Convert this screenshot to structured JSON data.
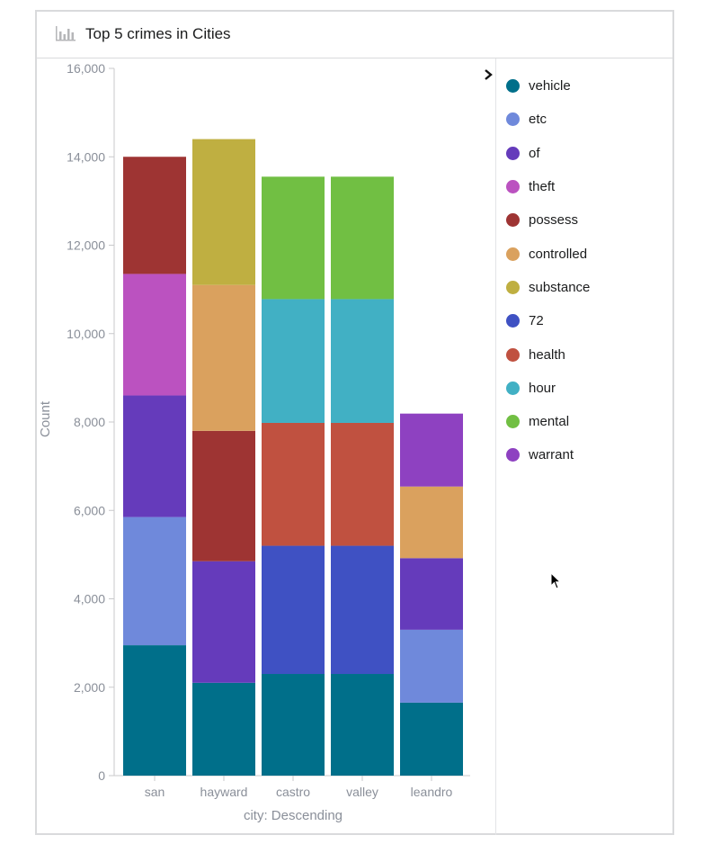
{
  "panel": {
    "title": "Top 5 crimes in Cities",
    "icon": "bar-chart-icon"
  },
  "chart_data": {
    "type": "bar",
    "stacked": true,
    "categories": [
      "san",
      "hayward",
      "castro",
      "valley",
      "leandro"
    ],
    "xlabel": "city: Descending",
    "ylabel": "Count",
    "ylim": [
      0,
      16000
    ],
    "yticks": [
      "0",
      "2,000",
      "4,000",
      "6,000",
      "8,000",
      "10,000",
      "12,000",
      "14,000",
      "16,000"
    ],
    "grid": false,
    "legend_position": "right",
    "series": [
      {
        "name": "vehicle",
        "color": "#006f8a",
        "values": [
          2950,
          2100,
          2300,
          2300,
          1650
        ]
      },
      {
        "name": "etc",
        "color": "#6f89db",
        "values": [
          2900,
          0,
          0,
          0,
          1650
        ]
      },
      {
        "name": "of",
        "color": "#653bbb",
        "values": [
          2750,
          2750,
          0,
          0,
          1620
        ]
      },
      {
        "name": "theft",
        "color": "#bb52c0",
        "values": [
          2750,
          0,
          0,
          0,
          0
        ]
      },
      {
        "name": "possess",
        "color": "#9e3433",
        "values": [
          2650,
          2950,
          0,
          0,
          0
        ]
      },
      {
        "name": "controlled",
        "color": "#daa15e",
        "values": [
          0,
          3300,
          0,
          0,
          1620
        ]
      },
      {
        "name": "substance",
        "color": "#bfaf41",
        "values": [
          0,
          3300,
          0,
          0,
          0
        ]
      },
      {
        "name": "72",
        "color": "#3f51c3",
        "values": [
          0,
          0,
          2900,
          2900,
          0
        ]
      },
      {
        "name": "health",
        "color": "#c05140",
        "values": [
          0,
          0,
          2780,
          2780,
          0
        ]
      },
      {
        "name": "hour",
        "color": "#41b0c4",
        "values": [
          0,
          0,
          2800,
          2800,
          0
        ]
      },
      {
        "name": "mental",
        "color": "#71bf43",
        "values": [
          0,
          0,
          2770,
          2770,
          0
        ]
      },
      {
        "name": "warrant",
        "color": "#8e41c1",
        "values": [
          0,
          0,
          0,
          0,
          1650
        ]
      }
    ]
  }
}
